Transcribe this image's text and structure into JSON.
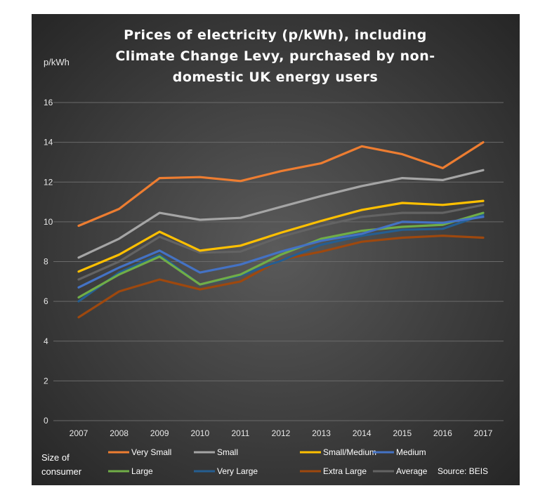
{
  "colors": {
    "panel_background_center": "#5a5a5a",
    "panel_background_edge": "#262626",
    "gridline": "#6a6a6a",
    "text": "#ffffff"
  },
  "chart_data": {
    "type": "line",
    "title_lines": [
      "Prices of electricity (p/kWh), including",
      "Climate Change Levy, purchased by non-",
      "domestic UK energy users"
    ],
    "ylabel": "p/kWh",
    "xlabel": "",
    "ylim": [
      0,
      16
    ],
    "yticks": [
      "0",
      "2",
      "4",
      "6",
      "8",
      "10",
      "12",
      "14",
      "16"
    ],
    "grid": true,
    "categories": [
      "2007",
      "2008",
      "2009",
      "2010",
      "2011",
      "2012",
      "2013",
      "2014",
      "2015",
      "2016",
      "2017"
    ],
    "legend_title_lines": [
      "Size of",
      "consumer"
    ],
    "legend_position": "bottom",
    "source": "Source: BEIS",
    "series": [
      {
        "name": "Very Small",
        "color": "#ed7d31",
        "values": [
          9.8,
          10.65,
          12.2,
          12.25,
          12.05,
          12.55,
          12.95,
          13.8,
          13.4,
          12.7,
          14.0
        ]
      },
      {
        "name": "Small",
        "color": "#a5a5a5",
        "values": [
          8.2,
          9.15,
          10.45,
          10.1,
          10.2,
          10.75,
          11.3,
          11.8,
          12.2,
          12.1,
          12.6
        ]
      },
      {
        "name": "Small/Medium",
        "color": "#ffc000",
        "values": [
          7.5,
          8.35,
          9.5,
          8.55,
          8.8,
          9.45,
          10.05,
          10.6,
          10.95,
          10.85,
          11.05
        ]
      },
      {
        "name": "Medium",
        "color": "#4472c4",
        "values": [
          6.7,
          7.7,
          8.55,
          7.45,
          7.85,
          8.5,
          9.05,
          9.4,
          10.0,
          9.95,
          10.25
        ]
      },
      {
        "name": "Large",
        "color": "#70ad47",
        "values": [
          6.2,
          7.35,
          8.25,
          6.85,
          7.35,
          8.35,
          9.15,
          9.55,
          9.75,
          9.85,
          10.45
        ]
      },
      {
        "name": "Very Large",
        "color": "#255e91",
        "values": [
          6.0,
          7.45,
          8.35,
          6.85,
          7.3,
          8.05,
          8.85,
          9.3,
          9.6,
          9.65,
          10.35
        ]
      },
      {
        "name": "Extra Large",
        "color": "#9e480e",
        "values": [
          5.2,
          6.5,
          7.1,
          6.6,
          7.0,
          8.1,
          8.5,
          9.0,
          9.2,
          9.3,
          9.2
        ]
      },
      {
        "name": "Average",
        "color": "#636363",
        "values": [
          7.1,
          8.0,
          9.25,
          8.45,
          8.5,
          9.25,
          9.8,
          10.25,
          10.45,
          10.45,
          10.85
        ]
      }
    ]
  }
}
